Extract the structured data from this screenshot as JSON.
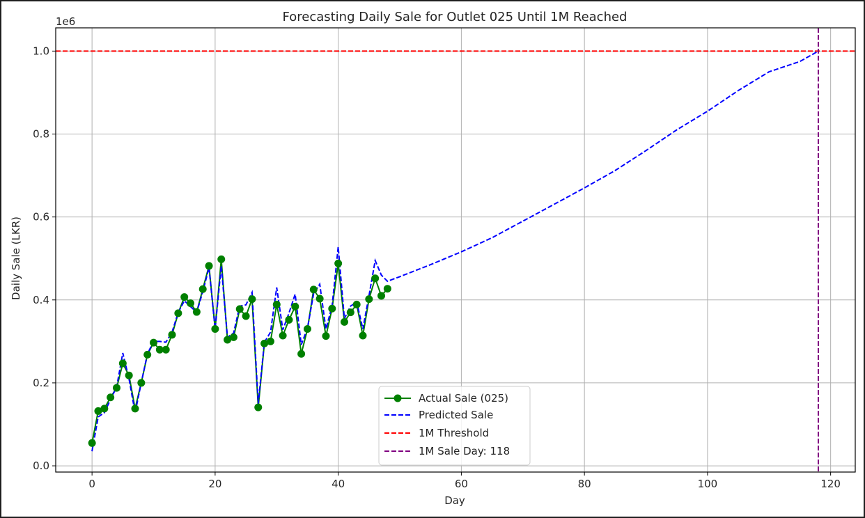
{
  "chart_data": {
    "type": "line",
    "title": "Forecasting Daily Sale for Outlet 025 Until 1M Reached",
    "xlabel": "Day",
    "ylabel": "Daily Sale (LKR)",
    "y_offset_label": "1e6",
    "xlim": [
      -5.9,
      124
    ],
    "ylim": [
      -0.015,
      1.056
    ],
    "x_ticks": [
      0,
      20,
      40,
      60,
      80,
      100,
      120
    ],
    "x_tick_labels": [
      "0",
      "20",
      "40",
      "60",
      "80",
      "100",
      "120"
    ],
    "y_ticks": [
      0.0,
      0.2,
      0.4,
      0.6,
      0.8,
      1.0
    ],
    "y_tick_labels": [
      "0.0",
      "0.2",
      "0.4",
      "0.6",
      "0.8",
      "1.0"
    ],
    "grid": true,
    "legend_position": "lower-center",
    "series": [
      {
        "name": "Actual Sale (025)",
        "style": "solid-markers",
        "color": "#008000",
        "x": [
          0,
          1,
          2,
          3,
          4,
          5,
          6,
          7,
          8,
          9,
          10,
          11,
          12,
          13,
          14,
          15,
          16,
          17,
          18,
          19,
          20,
          21,
          22,
          23,
          24,
          25,
          26,
          27,
          28,
          29,
          30,
          31,
          32,
          33,
          34,
          35,
          36,
          37,
          38,
          39,
          40,
          41,
          42,
          43,
          44,
          45,
          46,
          47,
          48
        ],
        "y": [
          0.055,
          0.132,
          0.138,
          0.165,
          0.188,
          0.247,
          0.218,
          0.138,
          0.2,
          0.268,
          0.297,
          0.28,
          0.28,
          0.316,
          0.368,
          0.407,
          0.392,
          0.371,
          0.426,
          0.482,
          0.33,
          0.498,
          0.304,
          0.31,
          0.378,
          0.361,
          0.402,
          0.141,
          0.295,
          0.3,
          0.389,
          0.314,
          0.352,
          0.384,
          0.27,
          0.33,
          0.425,
          0.403,
          0.313,
          0.379,
          0.488,
          0.347,
          0.37,
          0.389,
          0.314,
          0.402,
          0.452,
          0.41,
          0.427
        ]
      },
      {
        "name": "Predicted Sale",
        "style": "dashed",
        "color": "#0000ff",
        "x": [
          0,
          1,
          2,
          3,
          4,
          5,
          6,
          7,
          8,
          9,
          10,
          11,
          12,
          13,
          14,
          15,
          16,
          17,
          18,
          19,
          20,
          21,
          22,
          23,
          24,
          25,
          26,
          27,
          28,
          29,
          30,
          31,
          32,
          33,
          34,
          35,
          36,
          37,
          38,
          39,
          40,
          41,
          42,
          43,
          44,
          45,
          46,
          47,
          48,
          50,
          55,
          60,
          65,
          70,
          75,
          80,
          85,
          90,
          95,
          100,
          105,
          110,
          115,
          118
        ],
        "y": [
          0.035,
          0.118,
          0.128,
          0.16,
          0.19,
          0.272,
          0.21,
          0.128,
          0.2,
          0.27,
          0.3,
          0.3,
          0.298,
          0.322,
          0.37,
          0.398,
          0.384,
          0.37,
          0.42,
          0.478,
          0.33,
          0.482,
          0.31,
          0.32,
          0.385,
          0.388,
          0.418,
          0.15,
          0.298,
          0.322,
          0.43,
          0.328,
          0.368,
          0.414,
          0.292,
          0.332,
          0.415,
          0.438,
          0.33,
          0.385,
          0.528,
          0.355,
          0.385,
          0.395,
          0.33,
          0.41,
          0.495,
          0.46,
          0.445,
          0.456,
          0.485,
          0.516,
          0.55,
          0.59,
          0.63,
          0.67,
          0.712,
          0.76,
          0.81,
          0.855,
          0.905,
          0.95,
          0.975,
          1.0
        ]
      },
      {
        "name": "1M Threshold",
        "style": "dashed-horizontal",
        "color": "#ff0000",
        "y": 1.0
      },
      {
        "name": "1M Sale Day: 118",
        "style": "dashed-vertical",
        "color": "#800080",
        "x": 118
      }
    ]
  }
}
